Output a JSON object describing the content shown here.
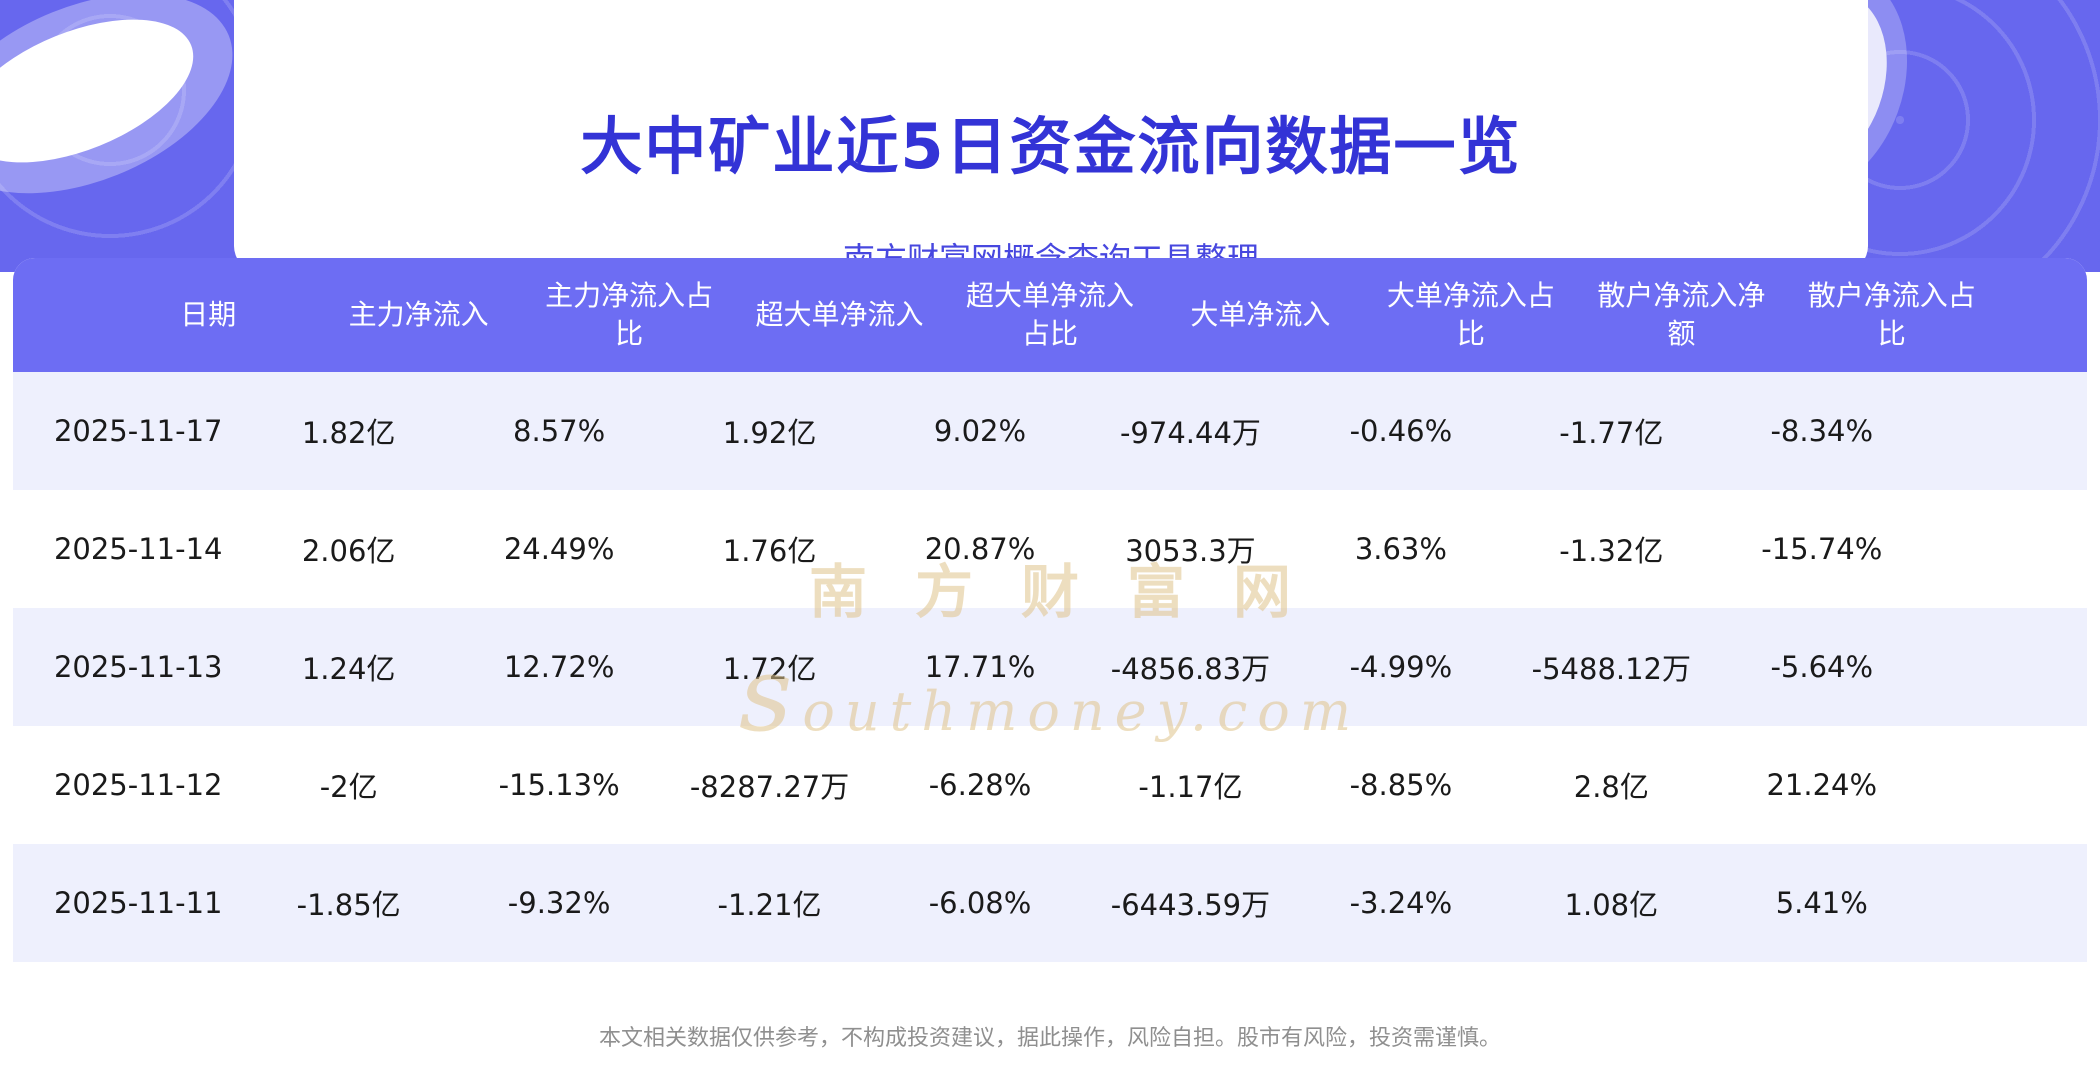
{
  "header": {
    "title": "大中矿业近5日资金流向数据一览",
    "subtitle": "南方财富网概念查询工具整理"
  },
  "chart_data": {
    "type": "table",
    "title": "大中矿业近5日资金流向数据一览",
    "columns": [
      "日期",
      "主力净流入",
      "主力净流入占比",
      "超大单净流入",
      "超大单净流入占比",
      "大单净流入",
      "大单净流入占比",
      "散户净流入净额",
      "散户净流入占比"
    ],
    "rows": [
      [
        "2025-11-17",
        "1.82亿",
        "8.57%",
        "1.92亿",
        "9.02%",
        "-974.44万",
        "-0.46%",
        "-1.77亿",
        "-8.34%"
      ],
      [
        "2025-11-14",
        "2.06亿",
        "24.49%",
        "1.76亿",
        "20.87%",
        "3053.3万",
        "3.63%",
        "-1.32亿",
        "-15.74%"
      ],
      [
        "2025-11-13",
        "1.24亿",
        "12.72%",
        "1.72亿",
        "17.71%",
        "-4856.83万",
        "-4.99%",
        "-5488.12万",
        "-5.64%"
      ],
      [
        "2025-11-12",
        "-2亿",
        "-15.13%",
        "-8287.27万",
        "-6.28%",
        "-1.17亿",
        "-8.85%",
        "2.8亿",
        "21.24%"
      ],
      [
        "2025-11-11",
        "-1.85亿",
        "-9.32%",
        "-1.21亿",
        "-6.08%",
        "-6443.59万",
        "-3.24%",
        "1.08亿",
        "5.41%"
      ]
    ]
  },
  "watermark": {
    "line1": "南方财富网",
    "line2": "southmoney.com"
  },
  "footer": {
    "disclaimer": "本文相关数据仅供参考，不构成投资建议，据此操作，风险自担。股市有风险，投资需谨慎。"
  },
  "colors": {
    "banner_purple": "#6767EE",
    "table_header_purple": "#6D6DF3",
    "title_blue": "#3333D6",
    "subtitle_purple": "#4747DF",
    "row_alt": "#EEF0FD",
    "body_text": "#1A1A1A",
    "watermark_gold": "#E0C48C",
    "footer_gray": "#8F8F8F"
  }
}
